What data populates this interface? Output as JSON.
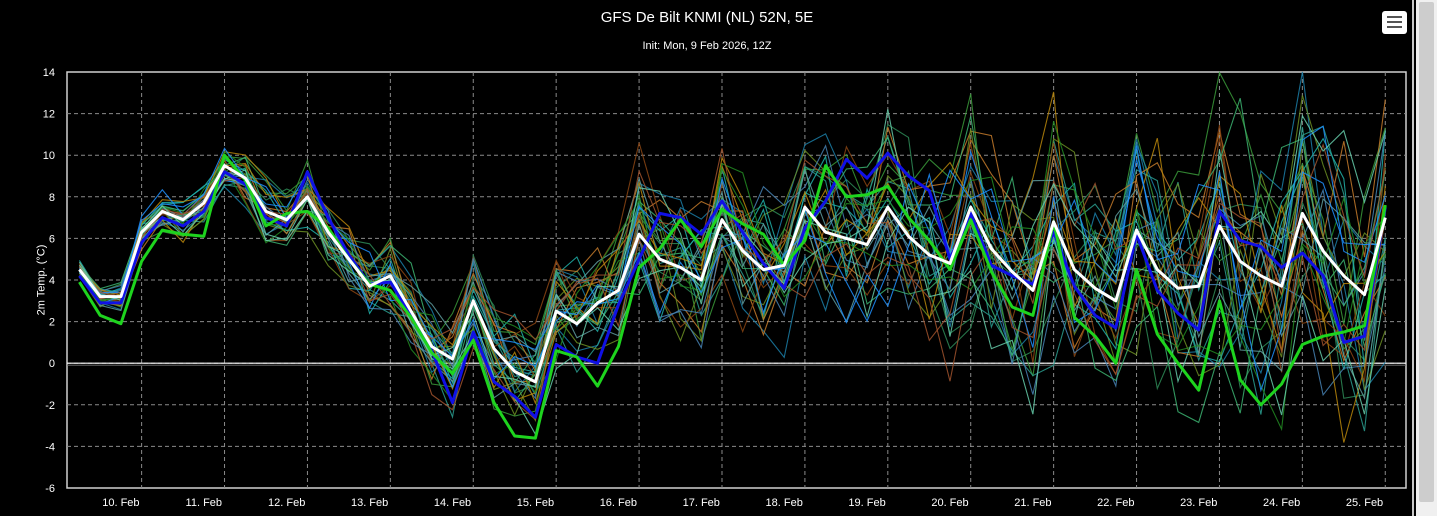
{
  "header": {
    "title": "GFS De Bilt KNMI (NL) 52N, 5E",
    "subtitle": "Init: Mon, 9 Feb 2026, 12Z",
    "menu_icon": "hamburger-menu-icon"
  },
  "chart_data": {
    "type": "line",
    "title": "GFS De Bilt KNMI (NL) 52N, 5E",
    "subtitle": "Init: Mon, 9 Feb 2026, 12Z",
    "xlabel": "",
    "ylabel": "2m Temp. (°C)",
    "ylim": [
      -6,
      14
    ],
    "yticks": [
      -6,
      -4,
      -2,
      0,
      2,
      4,
      6,
      8,
      10,
      12,
      14
    ],
    "xlim_days": [
      9.6,
      25.75
    ],
    "xticks": [
      "10. Feb",
      "11. Feb",
      "12. Feb",
      "13. Feb",
      "14. Feb",
      "15. Feb",
      "16. Feb",
      "17. Feb",
      "18. Feb",
      "19. Feb",
      "20. Feb",
      "21. Feb",
      "22. Feb",
      "23. Feb",
      "24. Feb",
      "25. Feb"
    ],
    "x_start": "2026-02-09T18:00Z",
    "x_step_hours": 6,
    "grid": true,
    "reference_line": 0,
    "main_series": [
      {
        "label": "white-run",
        "color": "#ffffff",
        "values": [
          4.5,
          3.2,
          3.2,
          6.3,
          7.3,
          6.9,
          7.7,
          9.5,
          8.9,
          7.3,
          6.9,
          8.0,
          6.3,
          5.0,
          3.7,
          4.2,
          2.5,
          0.8,
          0.2,
          3.0,
          0.7,
          -0.4,
          -0.9,
          2.5,
          1.9,
          2.9,
          3.5,
          6.2,
          5.0,
          4.6,
          4.0,
          6.9,
          5.4,
          4.5,
          4.7,
          7.5,
          6.3,
          6.0,
          5.7,
          7.5,
          6.1,
          5.2,
          4.8,
          7.5,
          5.5,
          4.4,
          3.5,
          6.8,
          4.5,
          3.6,
          3.0,
          6.4,
          4.5,
          3.6,
          3.7,
          6.6,
          4.9,
          4.2,
          3.7,
          7.2,
          5.4,
          4.2,
          3.3,
          7.0
        ]
      },
      {
        "label": "green-run",
        "color": "#1ed41e",
        "values": [
          3.9,
          2.3,
          1.9,
          4.9,
          6.4,
          6.2,
          6.1,
          10.0,
          8.8,
          6.6,
          7.2,
          7.3,
          6.5,
          5.0,
          3.8,
          3.5,
          2.2,
          0.5,
          -0.5,
          1.1,
          -1.9,
          -3.5,
          -3.6,
          0.6,
          0.3,
          -1.1,
          0.8,
          4.6,
          5.5,
          6.9,
          5.6,
          7.4,
          6.7,
          6.2,
          4.7,
          5.9,
          9.5,
          8.0,
          8.1,
          8.5,
          7.0,
          5.9,
          4.5,
          6.9,
          4.4,
          2.7,
          2.3,
          6.8,
          2.2,
          1.3,
          0.0,
          4.5,
          1.4,
          0.0,
          -1.3,
          3.0,
          -0.8,
          -2.0,
          -1.0,
          0.9,
          1.3,
          1.5,
          1.8,
          7.6
        ]
      },
      {
        "label": "blue-run",
        "color": "#1010e6",
        "values": [
          4.2,
          2.9,
          2.9,
          5.8,
          7.0,
          6.6,
          7.3,
          9.2,
          8.6,
          7.0,
          6.6,
          9.2,
          7.0,
          5.2,
          3.8,
          3.9,
          2.3,
          0.6,
          -1.9,
          1.5,
          -0.9,
          -1.6,
          -2.6,
          0.9,
          0.3,
          0.0,
          2.8,
          5.0,
          7.2,
          7.0,
          6.2,
          7.8,
          6.3,
          4.8,
          3.6,
          6.5,
          7.8,
          9.8,
          8.9,
          10.1,
          9.0,
          8.3,
          5.0,
          7.2,
          4.7,
          4.2,
          3.8,
          6.3,
          3.7,
          2.3,
          1.7,
          6.2,
          3.5,
          2.4,
          1.6,
          7.3,
          5.9,
          5.6,
          4.6,
          5.3,
          4.2,
          1.0,
          1.3,
          7.5
        ]
      }
    ],
    "ensemble_colors": [
      "#2e8b57",
      "#3a9a3a",
      "#1b7fa8",
      "#2a9d8f",
      "#c47a2a",
      "#6b8e23",
      "#20b2aa",
      "#8b4513",
      "#4682b4",
      "#3cb371",
      "#b8860b",
      "#5f9ea0",
      "#228b22",
      "#1e90ff",
      "#a0522d",
      "#66cdaa"
    ]
  }
}
